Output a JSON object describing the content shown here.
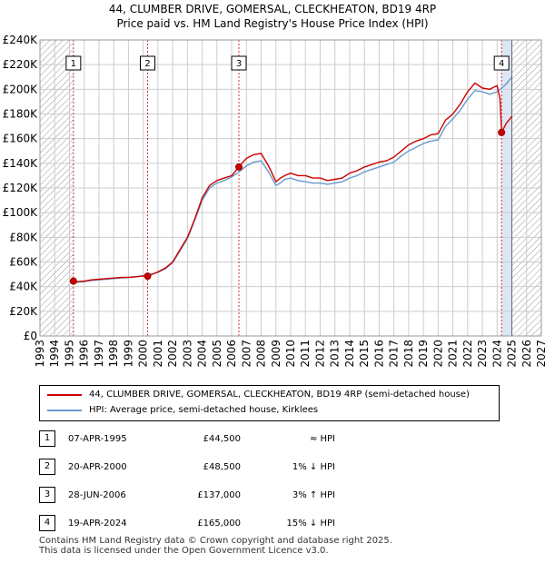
{
  "header": {
    "title": "44, CLUMBER DRIVE, GOMERSAL, CLECKHEATON, BD19 4RP",
    "subtitle": "Price paid vs. HM Land Registry's House Price Index (HPI)"
  },
  "colors": {
    "price_line": "#cc0000",
    "hpi_line": "#6699cc",
    "sale_marker_line": "#cc0000",
    "hatch": "#999999",
    "grid": "#cccccc",
    "highlight_band": "#dde6f5"
  },
  "chart_data": {
    "type": "line",
    "title": "44, CLUMBER DRIVE, GOMERSAL, CLECKHEATON, BD19 4RP",
    "subtitle": "Price paid vs. HM Land Registry's House Price Index (HPI)",
    "xlabel": "",
    "ylabel": "",
    "xlim": [
      1993,
      2027
    ],
    "ylim": [
      0,
      240000
    ],
    "grid": true,
    "x_ticks": [
      1993,
      1994,
      1995,
      1996,
      1997,
      1998,
      1999,
      2000,
      2001,
      2002,
      2003,
      2004,
      2005,
      2006,
      2007,
      2008,
      2009,
      2010,
      2011,
      2012,
      2013,
      2014,
      2015,
      2016,
      2017,
      2018,
      2019,
      2020,
      2021,
      2022,
      2023,
      2024,
      2025,
      2026,
      2027
    ],
    "x_tick_labels": [
      "1993",
      "1994",
      "1995",
      "1996",
      "1997",
      "1998",
      "1999",
      "2000",
      "2001",
      "2002",
      "2003",
      "2004",
      "2005",
      "2006",
      "2007",
      "2008",
      "2009",
      "2010",
      "2011",
      "2012",
      "2013",
      "2014",
      "2015",
      "2016",
      "2017",
      "2018",
      "2019",
      "2020",
      "2021",
      "2022",
      "2023",
      "2024",
      "2025",
      "2026",
      "2027"
    ],
    "y_ticks": [
      0,
      20000,
      40000,
      60000,
      80000,
      100000,
      120000,
      140000,
      160000,
      180000,
      200000,
      220000,
      240000
    ],
    "y_tick_labels": [
      "£0",
      "£20K",
      "£40K",
      "£60K",
      "£80K",
      "£100K",
      "£120K",
      "£140K",
      "£160K",
      "£180K",
      "£200K",
      "£220K",
      "£240K"
    ],
    "hatched_regions": [
      [
        1993,
        1995.27
      ],
      [
        2025.0,
        2027
      ]
    ],
    "legend_position": "bottom",
    "series": [
      {
        "name": "44, CLUMBER DRIVE, GOMERSAL, CLECKHEATON, BD19 4RP (semi-detached house)",
        "color": "#cc0000",
        "x": [
          1995.27,
          1995.5,
          1996,
          1996.5,
          1997,
          1997.5,
          1998,
          1998.5,
          1999,
          1999.5,
          2000.0,
          2000.3,
          2000.6,
          2001,
          2001.5,
          2002,
          2002.5,
          2003,
          2003.5,
          2004,
          2004.5,
          2005,
          2005.5,
          2006.0,
          2006.49,
          2006.7,
          2007,
          2007.5,
          2008,
          2008.5,
          2009,
          2009.3,
          2009.6,
          2010,
          2010.5,
          2011,
          2011.5,
          2012,
          2012.5,
          2013,
          2013.5,
          2014,
          2014.5,
          2015,
          2015.5,
          2016,
          2016.5,
          2017,
          2017.5,
          2018,
          2018.5,
          2019,
          2019.5,
          2020,
          2020.5,
          2021,
          2021.5,
          2022,
          2022.5,
          2023,
          2023.5,
          2024.0,
          2024.2,
          2024.3,
          2024.6,
          2025.0
        ],
        "values": [
          44500,
          44000,
          44500,
          45500,
          46000,
          46500,
          47000,
          47500,
          47500,
          48000,
          48500,
          48500,
          50000,
          52000,
          55000,
          60000,
          70000,
          80000,
          95000,
          112000,
          122000,
          126000,
          128000,
          130000,
          137000,
          140000,
          144000,
          147000,
          148000,
          138000,
          125000,
          128000,
          130000,
          132000,
          130000,
          130000,
          128000,
          128000,
          126000,
          127000,
          128000,
          132000,
          134000,
          137000,
          139000,
          141000,
          142000,
          145000,
          150000,
          155000,
          158000,
          160000,
          163000,
          164000,
          175000,
          180000,
          188000,
          198000,
          205000,
          201000,
          200000,
          203000,
          192000,
          165000,
          172000,
          178000
        ]
      },
      {
        "name": "HPI: Average price, semi-detached house, Kirklees",
        "color": "#6699cc",
        "x": [
          1995.0,
          1995.5,
          1996,
          1996.5,
          1997,
          1997.5,
          1998,
          1998.5,
          1999,
          1999.5,
          2000.0,
          2000.5,
          2001,
          2001.5,
          2002,
          2002.5,
          2003,
          2003.5,
          2004,
          2004.5,
          2005,
          2005.5,
          2006.0,
          2006.5,
          2007,
          2007.5,
          2008,
          2008.5,
          2009,
          2009.3,
          2009.6,
          2010,
          2010.5,
          2011,
          2011.5,
          2012,
          2012.5,
          2013,
          2013.5,
          2014,
          2014.5,
          2015,
          2015.5,
          2016,
          2016.5,
          2017,
          2017.5,
          2018,
          2018.5,
          2019,
          2019.5,
          2020,
          2020.5,
          2021,
          2021.5,
          2022,
          2022.5,
          2023,
          2023.5,
          2024.0,
          2024.3,
          2024.6,
          2025.0
        ],
        "values": [
          44000,
          43500,
          44000,
          45000,
          45500,
          46000,
          46500,
          47000,
          47500,
          48000,
          49000,
          50000,
          51500,
          54500,
          59500,
          69000,
          79000,
          94000,
          110000,
          120000,
          124000,
          126000,
          129000,
          133000,
          138000,
          141000,
          142000,
          133000,
          122000,
          124000,
          127000,
          128000,
          126000,
          125000,
          124000,
          124000,
          123000,
          124000,
          125000,
          128000,
          130000,
          133000,
          135000,
          137000,
          139000,
          141000,
          146000,
          150000,
          153000,
          156000,
          158000,
          159000,
          170000,
          176000,
          183000,
          192000,
          199000,
          198000,
          196000,
          198000,
          201000,
          204000,
          210000
        ]
      }
    ],
    "sale_markers": [
      {
        "label": "1",
        "x": 1995.27,
        "value": 44500
      },
      {
        "label": "2",
        "x": 2000.3,
        "value": 48500
      },
      {
        "label": "3",
        "x": 2006.49,
        "value": 137000
      },
      {
        "label": "4",
        "x": 2024.3,
        "value": 165000
      }
    ]
  },
  "legend": {
    "items": [
      {
        "label": "44, CLUMBER DRIVE, GOMERSAL, CLECKHEATON, BD19 4RP (semi-detached house)",
        "color": "#cc0000"
      },
      {
        "label": "HPI: Average price, semi-detached house, Kirklees",
        "color": "#6699cc"
      }
    ]
  },
  "sales": [
    {
      "num": "1",
      "date": "07-APR-1995",
      "price": "£44,500",
      "hpi": "≈ HPI"
    },
    {
      "num": "2",
      "date": "20-APR-2000",
      "price": "£48,500",
      "hpi": "1% ↓ HPI"
    },
    {
      "num": "3",
      "date": "28-JUN-2006",
      "price": "£137,000",
      "hpi": "3% ↑ HPI"
    },
    {
      "num": "4",
      "date": "19-APR-2024",
      "price": "£165,000",
      "hpi": "15% ↓ HPI"
    }
  ],
  "footer": {
    "line1": "Contains HM Land Registry data © Crown copyright and database right 2025.",
    "line2": "This data is licensed under the Open Government Licence v3.0."
  }
}
